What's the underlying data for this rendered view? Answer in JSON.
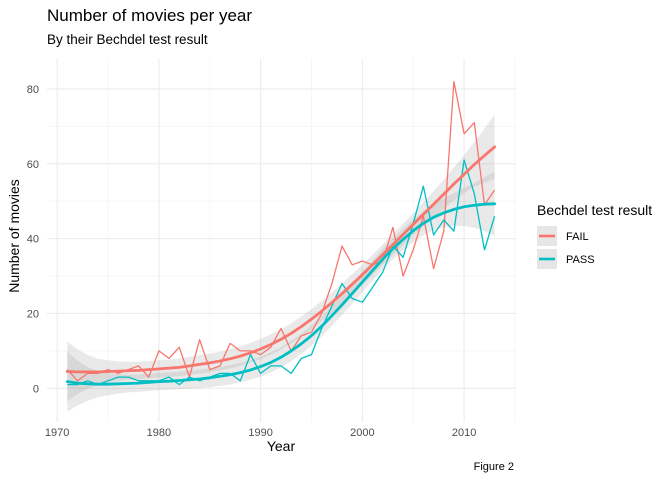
{
  "chart_data": {
    "type": "line",
    "title": "Number of movies per year",
    "subtitle": "By their Bechdel test result",
    "xlabel": "Year",
    "ylabel": "Number of movies",
    "caption": "Figure 2",
    "xlim": [
      1969.0,
      2015.1
    ],
    "ylim": [
      -9,
      88
    ],
    "x_ticks": [
      1970,
      1980,
      1990,
      2000,
      2010
    ],
    "y_ticks": [
      0,
      20,
      40,
      60,
      80
    ],
    "grid": true,
    "legend": {
      "title": "Bechdel test result",
      "position": "right"
    },
    "x": [
      1971,
      1972,
      1973,
      1974,
      1975,
      1976,
      1977,
      1978,
      1979,
      1980,
      1981,
      1982,
      1983,
      1984,
      1985,
      1986,
      1987,
      1988,
      1989,
      1990,
      1991,
      1992,
      1993,
      1994,
      1995,
      1996,
      1997,
      1998,
      1999,
      2000,
      2001,
      2002,
      2003,
      2004,
      2005,
      2006,
      2007,
      2008,
      2009,
      2010,
      2011,
      2012,
      2013
    ],
    "series": [
      {
        "name": "FAIL",
        "color": "#F8766D",
        "values": [
          5,
          2,
          4,
          4,
          5,
          4,
          5,
          6,
          3,
          10,
          8,
          11,
          3,
          13,
          5,
          6,
          12,
          10,
          10,
          9,
          11,
          16,
          10,
          14,
          15,
          20,
          28,
          38,
          33,
          34,
          33,
          34,
          43,
          30,
          37,
          46,
          32,
          42,
          82,
          68,
          71,
          49,
          53
        ],
        "trend": [
          4.5,
          4.4,
          4.4,
          4.4,
          4.5,
          4.6,
          4.7,
          4.8,
          5.0,
          5.2,
          5.4,
          5.6,
          6.0,
          6.4,
          6.8,
          7.3,
          7.9,
          8.6,
          9.5,
          10.5,
          11.7,
          13.1,
          14.7,
          16.5,
          18.5,
          20.6,
          22.9,
          25.3,
          27.8,
          30.4,
          33.0,
          35.7,
          38.4,
          41.1,
          43.8,
          46.5,
          49.2,
          51.9,
          54.6,
          57.2,
          59.8,
          62.2,
          64.5
        ],
        "band_halfwidth": [
          8.0,
          6.0,
          4.5,
          3.5,
          3.0,
          2.6,
          2.4,
          2.3,
          2.3,
          2.3,
          2.3,
          2.4,
          2.4,
          2.5,
          2.5,
          2.5,
          2.6,
          2.6,
          2.6,
          2.7,
          2.7,
          2.7,
          2.7,
          2.7,
          2.7,
          2.7,
          2.7,
          2.7,
          2.7,
          2.7,
          2.7,
          2.7,
          2.8,
          2.9,
          3.0,
          3.2,
          3.5,
          3.9,
          4.4,
          5.1,
          6.0,
          7.2,
          8.6
        ]
      },
      {
        "name": "PASS",
        "color": "#00BFC4",
        "values": [
          1,
          1,
          2,
          1,
          2,
          3,
          3,
          2,
          2,
          2,
          3,
          1,
          3,
          2,
          3,
          4,
          4,
          2,
          9,
          4,
          6,
          6,
          4,
          8,
          9,
          16,
          22,
          28,
          24,
          23,
          27,
          31,
          38,
          35,
          44,
          54,
          41,
          45,
          42,
          61,
          52,
          37,
          46
        ],
        "trend": [
          1.8,
          1.4,
          1.2,
          1.1,
          1.1,
          1.2,
          1.3,
          1.4,
          1.6,
          1.8,
          1.9,
          2.1,
          2.3,
          2.5,
          2.8,
          3.2,
          3.6,
          4.2,
          4.9,
          5.8,
          6.9,
          8.3,
          10.0,
          11.9,
          14.1,
          16.6,
          19.4,
          22.3,
          25.3,
          28.4,
          31.5,
          34.5,
          37.3,
          39.8,
          42.1,
          44.1,
          45.7,
          46.9,
          47.8,
          48.5,
          48.9,
          49.2,
          49.3
        ],
        "band_halfwidth": [
          8.0,
          6.0,
          4.5,
          3.5,
          3.0,
          2.6,
          2.4,
          2.3,
          2.3,
          2.3,
          2.3,
          2.4,
          2.4,
          2.5,
          2.5,
          2.5,
          2.6,
          2.6,
          2.6,
          2.7,
          2.7,
          2.7,
          2.7,
          2.7,
          2.7,
          2.7,
          2.7,
          2.7,
          2.7,
          2.7,
          2.7,
          2.7,
          2.8,
          2.9,
          3.0,
          3.2,
          3.5,
          3.9,
          4.4,
          5.1,
          6.0,
          7.2,
          8.6
        ]
      }
    ]
  }
}
